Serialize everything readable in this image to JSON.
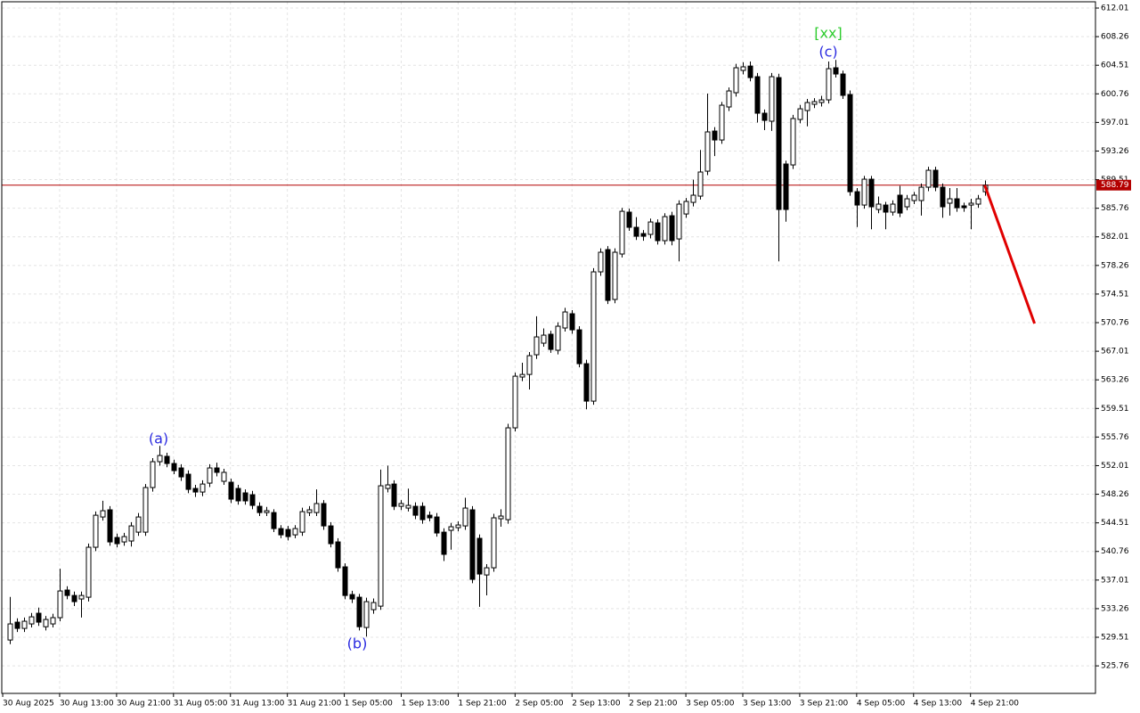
{
  "chart_data": {
    "type": "candlestick",
    "up_color": "#ffffff",
    "down_color": "#000000",
    "edge_color": "#000000",
    "grid": true,
    "xlim": [
      -1.13,
      152.56
    ],
    "ylim": [
      522.15,
      612.83
    ],
    "yticks": [
      612.01,
      608.26,
      604.51,
      600.76,
      597.01,
      593.26,
      589.51,
      585.76,
      582.01,
      578.26,
      574.51,
      570.76,
      567.01,
      563.26,
      559.51,
      555.76,
      552.01,
      548.26,
      544.51,
      540.76,
      537.01,
      533.26,
      529.51,
      525.76
    ],
    "xticks": [
      {
        "value": -1,
        "label": "30 Aug 2025"
      },
      {
        "value": 7,
        "label": "30 Aug 13:00"
      },
      {
        "value": 15,
        "label": "30 Aug 21:00"
      },
      {
        "value": 23,
        "label": "31 Aug 05:00"
      },
      {
        "value": 31,
        "label": "31 Aug 13:00"
      },
      {
        "value": 39,
        "label": "31 Aug 21:00"
      },
      {
        "value": 47,
        "label": "1 Sep 05:00"
      },
      {
        "value": 55,
        "label": "1 Sep 13:00"
      },
      {
        "value": 63,
        "label": "1 Sep 21:00"
      },
      {
        "value": 71,
        "label": "2 Sep 05:00"
      },
      {
        "value": 79,
        "label": "2 Sep 13:00"
      },
      {
        "value": 87,
        "label": "2 Sep 21:00"
      },
      {
        "value": 95,
        "label": "3 Sep 05:00"
      },
      {
        "value": 103,
        "label": "3 Sep 13:00"
      },
      {
        "value": 111,
        "label": "3 Sep 21:00"
      },
      {
        "value": 119,
        "label": "4 Sep 05:00"
      },
      {
        "value": 127,
        "label": "4 Sep 13:00"
      },
      {
        "value": 135,
        "label": "4 Sep 21:00"
      }
    ],
    "open": [
      529.15,
      531.49,
      530.67,
      531.26,
      532.66,
      530.89,
      531.26,
      532.08,
      535.7,
      534.99,
      534.53,
      534.76,
      541.31,
      545.28,
      546.22,
      542.59,
      542.01,
      542.13,
      543.29,
      543.29,
      549.14,
      552.53,
      553.23,
      552.29,
      551.71,
      550.89,
      549.02,
      548.55,
      549.72,
      551.71,
      549.96,
      549.84,
      549.02,
      548.44,
      548.2,
      546.68,
      545.86,
      545.86,
      543.76,
      543.64,
      542.94,
      543.29,
      545.86,
      545.86,
      547.04,
      544.11,
      542.01,
      538.74,
      535.11,
      534.76,
      530.79,
      533.13,
      533.59,
      549.02,
      549.6,
      546.68,
      546.45,
      546.68,
      546.68,
      545.51,
      545.28,
      543.29,
      543.53,
      543.88,
      544.11,
      546.22,
      542.48,
      537.68,
      538.62,
      545.05,
      544.93,
      556.97,
      563.63,
      563.97,
      566.55,
      568.07,
      569.24,
      567.14,
      570.06,
      571.93,
      569.82,
      565.38,
      560.47,
      577.42,
      580.34,
      573.8,
      579.76,
      585.25,
      583.26,
      582.44,
      582.33,
      583.84,
      581.51,
      584.78,
      581.74,
      585.01,
      586.53,
      587.35,
      590.62,
      595.88,
      594.71,
      599.04,
      600.91,
      603.83,
      604.4,
      603.01,
      598.22,
      597.17,
      602.89,
      591.56,
      591.44,
      597.4,
      598.57,
      599.39,
      599.62,
      599.97,
      604.18,
      603.36,
      600.67,
      587.93,
      586.18,
      589.57,
      585.6,
      586.18,
      585.25,
      587.47,
      585.95,
      586.77,
      586.77,
      588.52,
      590.74,
      588.52,
      586.42,
      587.0,
      586.07,
      586.18,
      586.3,
      587.93
    ],
    "high": [
      534.8,
      532.0,
      532.1,
      532.7,
      533.4,
      532.3,
      532.6,
      538.5,
      536.2,
      535.5,
      535.5,
      541.8,
      546.0,
      547.4,
      546.7,
      543.1,
      543.2,
      544.6,
      545.8,
      549.6,
      553.0,
      554.6,
      553.7,
      552.8,
      552.2,
      551.4,
      549.5,
      550.1,
      552.2,
      552.4,
      551.6,
      550.3,
      549.5,
      548.9,
      548.7,
      547.2,
      546.6,
      546.3,
      544.2,
      544.1,
      544.2,
      546.5,
      546.7,
      548.9,
      547.5,
      544.6,
      542.5,
      539.2,
      535.6,
      535.2,
      534.7,
      534.6,
      551.5,
      552.0,
      550.1,
      547.5,
      549.0,
      547.2,
      547.2,
      546.0,
      545.8,
      543.8,
      544.5,
      544.7,
      547.8,
      546.7,
      543.0,
      539.1,
      545.7,
      546.3,
      557.5,
      564.2,
      565.5,
      566.9,
      571.6,
      570.0,
      569.7,
      570.8,
      572.7,
      572.4,
      570.3,
      565.9,
      577.9,
      580.5,
      580.8,
      580.5,
      585.8,
      585.7,
      584.6,
      582.9,
      584.4,
      584.3,
      585.1,
      585.3,
      586.8,
      587.1,
      589.5,
      593.4,
      600.8,
      596.4,
      599.7,
      601.6,
      604.7,
      604.9,
      605.0,
      603.5,
      598.7,
      603.5,
      603.4,
      592.0,
      598.0,
      599.3,
      600.1,
      600.2,
      600.5,
      605.0,
      605.2,
      603.8,
      601.2,
      588.4,
      590.0,
      590.0,
      587.3,
      586.6,
      586.8,
      588.7,
      587.5,
      587.9,
      589.0,
      591.2,
      591.2,
      589.0,
      588.4,
      588.4,
      586.5,
      587.0,
      587.5,
      589.4
    ],
    "low": [
      528.6,
      530.2,
      530.2,
      530.8,
      531.0,
      530.4,
      530.8,
      531.6,
      534.5,
      533.6,
      532.1,
      534.2,
      540.8,
      544.8,
      541.5,
      541.3,
      541.5,
      541.4,
      542.8,
      542.8,
      548.6,
      552.0,
      551.8,
      550.9,
      550.0,
      548.4,
      547.9,
      548.0,
      549.2,
      550.6,
      549.5,
      547.1,
      546.9,
      546.9,
      546.3,
      545.4,
      545.4,
      543.3,
      542.5,
      542.2,
      542.5,
      542.8,
      545.4,
      545.4,
      543.6,
      541.3,
      538.1,
      534.5,
      534.0,
      530.4,
      529.6,
      532.6,
      533.1,
      548.5,
      546.2,
      546.2,
      546.0,
      545.0,
      544.4,
      544.7,
      542.7,
      539.5,
      541.0,
      543.4,
      543.6,
      536.6,
      533.5,
      535.0,
      538.1,
      544.0,
      544.4,
      556.5,
      563.1,
      562.0,
      566.0,
      567.6,
      566.8,
      566.6,
      569.6,
      569.3,
      564.9,
      559.4,
      560.0,
      576.9,
      573.2,
      573.3,
      579.3,
      582.8,
      581.6,
      581.5,
      581.8,
      581.0,
      581.0,
      580.9,
      578.8,
      584.5,
      586.0,
      586.9,
      590.1,
      592.6,
      594.2,
      598.5,
      600.4,
      603.3,
      602.4,
      597.0,
      596.0,
      595.9,
      578.8,
      584.0,
      590.9,
      596.9,
      596.5,
      598.9,
      599.1,
      599.5,
      602.9,
      600.1,
      587.4,
      583.3,
      585.7,
      583.0,
      585.1,
      583.0,
      584.8,
      584.6,
      585.5,
      586.3,
      584.8,
      588.0,
      588.0,
      584.5,
      584.8,
      585.3,
      585.3,
      583.0,
      585.8,
      587.4
    ],
    "close": [
      531.26,
      530.67,
      531.61,
      532.19,
      531.49,
      531.84,
      532.08,
      535.58,
      534.99,
      534.18,
      534.99,
      541.31,
      545.51,
      546.1,
      542.01,
      541.78,
      542.71,
      544.11,
      545.28,
      549.14,
      552.53,
      553.34,
      552.29,
      551.36,
      550.54,
      548.9,
      548.55,
      549.6,
      551.71,
      551.13,
      551.13,
      547.62,
      547.39,
      547.39,
      546.8,
      545.86,
      546.1,
      543.76,
      542.94,
      542.71,
      543.76,
      545.98,
      546.22,
      547.04,
      544.11,
      541.78,
      538.62,
      534.99,
      534.53,
      530.89,
      534.18,
      534.06,
      549.37,
      549.49,
      546.68,
      547.04,
      546.8,
      545.51,
      544.93,
      545.17,
      543.18,
      540.38,
      544.0,
      544.23,
      546.45,
      537.1,
      537.8,
      538.62,
      545.17,
      545.4,
      556.97,
      563.74,
      563.97,
      566.43,
      568.89,
      569.12,
      567.25,
      570.29,
      572.16,
      569.82,
      565.38,
      560.47,
      577.42,
      579.99,
      573.68,
      579.99,
      585.36,
      583.26,
      582.09,
      582.09,
      583.96,
      581.51,
      584.66,
      581.51,
      586.3,
      586.65,
      587.47,
      590.51,
      595.77,
      594.71,
      599.27,
      601.14,
      604.18,
      604.3,
      602.89,
      598.22,
      597.28,
      603.01,
      585.6,
      585.6,
      597.52,
      598.8,
      599.62,
      599.74,
      599.97,
      604.06,
      603.36,
      600.56,
      587.93,
      586.18,
      589.57,
      585.95,
      586.3,
      585.25,
      586.3,
      585.13,
      587.0,
      587.47,
      588.52,
      590.74,
      588.52,
      585.95,
      587.0,
      585.83,
      585.83,
      586.42,
      587.0,
      588.79
    ],
    "current_price": {
      "value": 588.79,
      "color": "#b40000"
    },
    "forecast": {
      "color": "#e00000",
      "x": [
        137,
        144
      ],
      "values": [
        588.79,
        570.64
      ]
    },
    "annotations": [
      {
        "text": "(a)",
        "color": "#2a2ae0"
      },
      {
        "text": "(b)",
        "color": "#2a2ae0"
      },
      {
        "text": "(c)",
        "color": "#2a2ae0"
      },
      {
        "text": "[xx]",
        "color": "#2ecc2e"
      }
    ]
  }
}
